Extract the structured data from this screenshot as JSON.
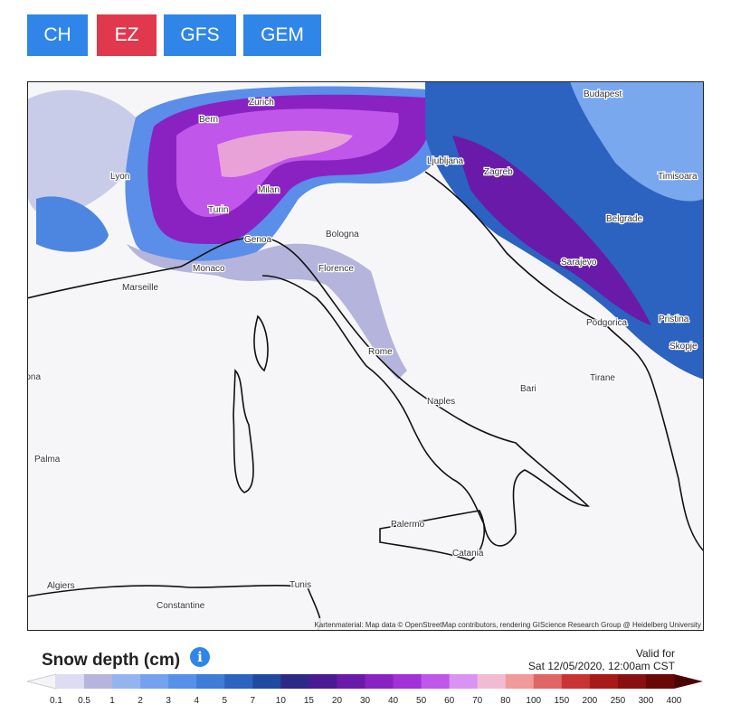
{
  "buttons": [
    "CH",
    "EZ",
    "GFS",
    "GEM"
  ],
  "map": {
    "cities": [
      "Zurich",
      "Budapest",
      "Bern",
      "Lyon",
      "Ljubljana",
      "Zagreb",
      "Timisoara",
      "Milan",
      "Turin",
      "Belgrade",
      "Genoa",
      "Bologna",
      "Sarajevo",
      "Monaco",
      "Marseille",
      "Florence",
      "Podgorica",
      "Pristina",
      "Rome",
      "Skopje",
      "Barcelona",
      "Tirane",
      "Bari",
      "Naples",
      "Palma",
      "Palermo",
      "Catania",
      "Algiers",
      "Tunis",
      "Constantine"
    ],
    "attribution": "Kartenmaterial: Map data © OpenStreetMap contributors, rendering GIScience Research Group @ Heidelberg University"
  },
  "legend": {
    "title": "Snow depth (cm)",
    "valid_label": "Valid for",
    "valid_time": "Sat 12/05/2020, 12:00am CST",
    "ticks": [
      0.1,
      0.5,
      1,
      2,
      3,
      4,
      5,
      7,
      10,
      15,
      20,
      30,
      40,
      50,
      60,
      70,
      80,
      100,
      150,
      200,
      250,
      300,
      400
    ],
    "colors": [
      "#dcdcf2",
      "#b4b4dc",
      "#94b4f0",
      "#74a2ee",
      "#5690e8",
      "#3e7cd8",
      "#2c62c0",
      "#1f4aa0",
      "#2c2a86",
      "#4a1a92",
      "#6a1aa8",
      "#8a22c2",
      "#a232d8",
      "#c056ea",
      "#d894f2",
      "#f0bcd4",
      "#f09a9a",
      "#e06666",
      "#c83434",
      "#a81a1a",
      "#881010",
      "#6a0808"
    ]
  }
}
